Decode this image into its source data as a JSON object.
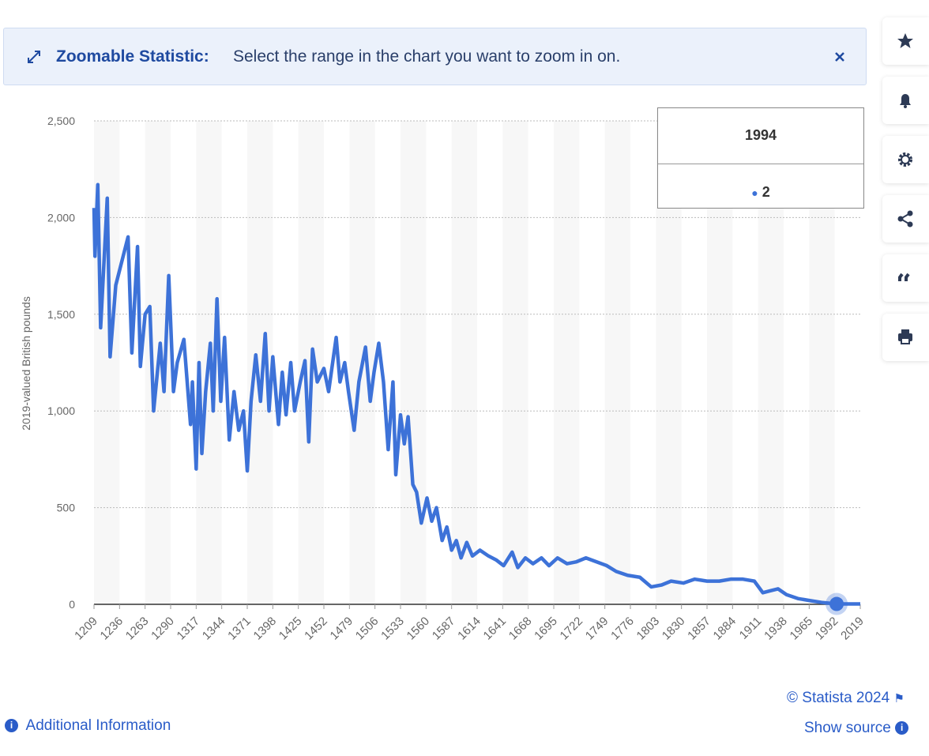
{
  "banner": {
    "title": "Zoomable Statistic:",
    "text": "Select the range in the chart you want to zoom in on."
  },
  "chart_data": {
    "type": "line",
    "y_label": "2019-valued British pounds",
    "xlim": [
      1209,
      2019
    ],
    "xticks": [
      1209,
      1236,
      1263,
      1290,
      1317,
      1344,
      1371,
      1398,
      1425,
      1452,
      1479,
      1506,
      1533,
      1560,
      1587,
      1614,
      1641,
      1668,
      1695,
      1722,
      1749,
      1776,
      1803,
      1830,
      1857,
      1884,
      1911,
      1938,
      1965,
      1992,
      2019
    ],
    "ylim": [
      0,
      2500
    ],
    "yticks": [
      0,
      {
        "value": 500,
        "label": "500"
      },
      {
        "value": 1000,
        "label": "1,000"
      },
      {
        "value": 1500,
        "label": "1,500"
      },
      {
        "value": 2000,
        "label": "2,000"
      },
      {
        "value": 2500,
        "label": "2,500"
      }
    ],
    "grid": true,
    "series": [
      {
        "color": "#3d72d8",
        "x": [
          1209,
          1210,
          1213,
          1216,
          1223,
          1226,
          1232,
          1245,
          1249,
          1255,
          1258,
          1263,
          1268,
          1272,
          1279,
          1283,
          1288,
          1293,
          1297,
          1304,
          1311,
          1313,
          1317,
          1320,
          1323,
          1327,
          1332,
          1335,
          1339,
          1343,
          1347,
          1352,
          1357,
          1362,
          1367,
          1371,
          1375,
          1380,
          1385,
          1390,
          1394,
          1398,
          1404,
          1408,
          1412,
          1417,
          1421,
          1427,
          1432,
          1436,
          1440,
          1445,
          1452,
          1457,
          1465,
          1469,
          1474,
          1478,
          1484,
          1489,
          1496,
          1501,
          1505,
          1510,
          1515,
          1520,
          1525,
          1528,
          1533,
          1537,
          1541,
          1546,
          1550,
          1555,
          1561,
          1566,
          1571,
          1577,
          1582,
          1587,
          1592,
          1597,
          1603,
          1609,
          1617,
          1626,
          1634,
          1642,
          1651,
          1657,
          1665,
          1673,
          1682,
          1690,
          1699,
          1709,
          1719,
          1729,
          1740,
          1751,
          1761,
          1773,
          1786,
          1798,
          1809,
          1819,
          1832,
          1844,
          1857,
          1870,
          1882,
          1895,
          1907,
          1916,
          1924,
          1932,
          1941,
          1953,
          1965,
          1978,
          1994,
          2005,
          2019
        ],
        "values": [
          2050,
          1800,
          2170,
          1430,
          2100,
          1280,
          1650,
          1900,
          1300,
          1850,
          1230,
          1500,
          1540,
          1000,
          1350,
          1100,
          1700,
          1100,
          1250,
          1370,
          930,
          1150,
          700,
          1250,
          780,
          1100,
          1350,
          1000,
          1580,
          1050,
          1380,
          850,
          1100,
          900,
          1000,
          690,
          1050,
          1290,
          1050,
          1400,
          1000,
          1280,
          930,
          1200,
          980,
          1250,
          1000,
          1150,
          1260,
          840,
          1320,
          1150,
          1220,
          1100,
          1380,
          1150,
          1250,
          1100,
          900,
          1150,
          1330,
          1050,
          1200,
          1350,
          1150,
          800,
          1150,
          670,
          980,
          830,
          970,
          620,
          580,
          420,
          550,
          430,
          500,
          330,
          400,
          280,
          330,
          240,
          320,
          250,
          280,
          250,
          230,
          200,
          270,
          190,
          240,
          210,
          240,
          200,
          240,
          210,
          220,
          240,
          220,
          200,
          170,
          150,
          140,
          90,
          100,
          120,
          110,
          130,
          120,
          120,
          130,
          130,
          120,
          60,
          70,
          80,
          50,
          30,
          20,
          10,
          2,
          2,
          2
        ]
      }
    ],
    "tooltip": {
      "x": 1994,
      "value": 2
    }
  },
  "footer": {
    "copyright": "© Statista 2024",
    "info": "Additional Information",
    "source": "Show source"
  }
}
